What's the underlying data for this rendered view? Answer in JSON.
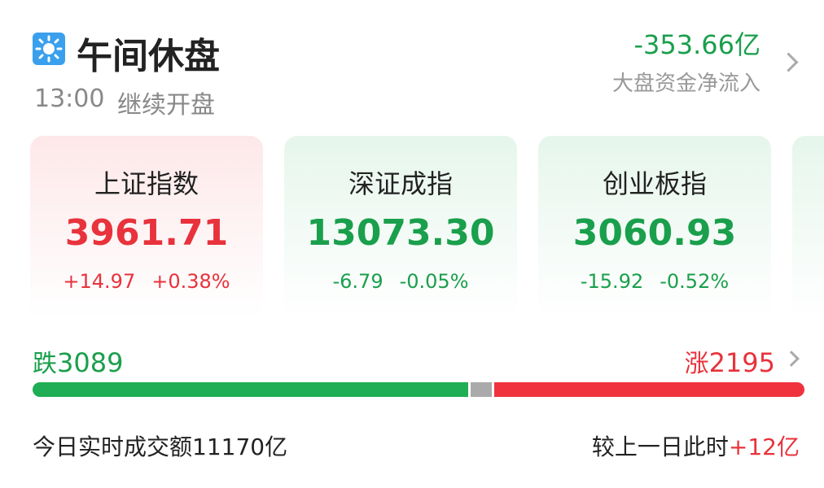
{
  "header": {
    "title": "午间休盘",
    "time": "13:00",
    "status": "继续开盘",
    "net_flow": "-353.66亿",
    "net_flow_label": "大盘资金净流入"
  },
  "indices": [
    {
      "name": "上证指数",
      "value": "3961.71",
      "change": "+14.97",
      "pct": "+0.38%"
    },
    {
      "name": "深证成指",
      "value": "13073.30",
      "change": "-6.79",
      "pct": "-0.05%"
    },
    {
      "name": "创业板指",
      "value": "3060.93",
      "change": "-15.92",
      "pct": "-0.52%"
    }
  ],
  "breadth": {
    "down_label": "跌",
    "down": 3089,
    "up_label": "涨",
    "up": 2195
  },
  "turnover": {
    "label": "今日实时成交额",
    "amount": "11170亿",
    "compare_label": "较上一日此时",
    "compare": "+12亿"
  }
}
